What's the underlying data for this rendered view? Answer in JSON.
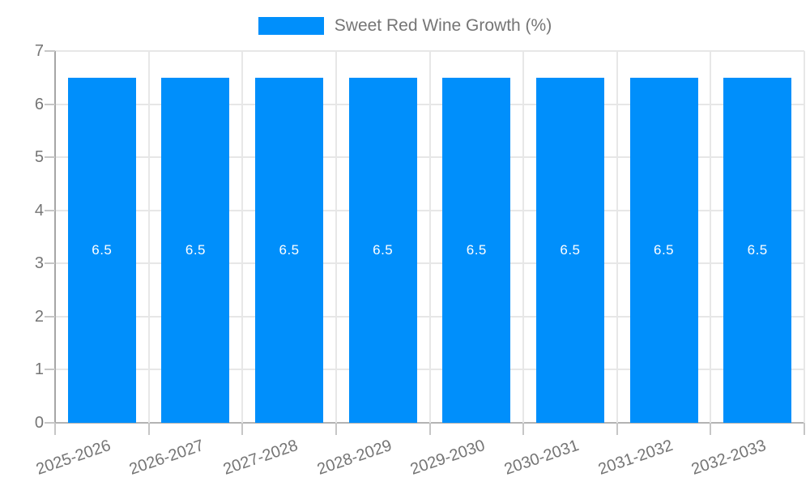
{
  "chart_data": {
    "type": "bar",
    "title": "",
    "legend": [
      "Sweet Red Wine Growth (%)"
    ],
    "legend_position": "top",
    "categories": [
      "2025-2026",
      "2026-2027",
      "2027-2028",
      "2028-2029",
      "2029-2030",
      "2030-2031",
      "2031-2032",
      "2032-2033"
    ],
    "series": [
      {
        "name": "Sweet Red Wine Growth (%)",
        "values": [
          6.5,
          6.5,
          6.5,
          6.5,
          6.5,
          6.5,
          6.5,
          6.5
        ],
        "value_labels": [
          "6.5",
          "6.5",
          "6.5",
          "6.5",
          "6.5",
          "6.5",
          "6.5",
          "6.5"
        ],
        "color": "#008FFB"
      }
    ],
    "xlabel": "",
    "ylabel": "",
    "ylim": [
      0,
      7
    ],
    "yticks": [
      0,
      1,
      2,
      3,
      4,
      5,
      6,
      7
    ],
    "grid": true
  },
  "colors": {
    "bar": "#008FFB",
    "bar_label_text": "#FFFFFF",
    "axis_text": "#757575",
    "legend_text": "#757575",
    "gridline": "#E7E7E7",
    "baseline": "#B3B3B3",
    "y_axis_line": "#A6A6A6",
    "tick": "#C6C6C6",
    "background": "#FFFFFF"
  }
}
